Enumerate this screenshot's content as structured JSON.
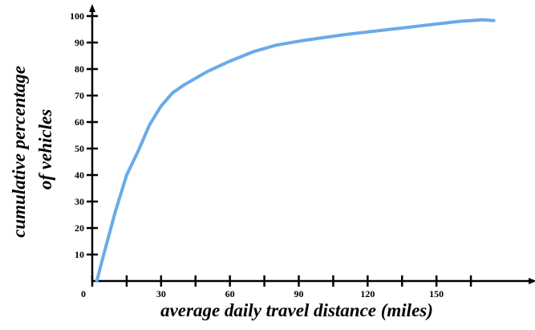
{
  "chart_data": {
    "type": "line",
    "title": "",
    "xlabel": "average daily travel distance (miles)",
    "ylabel_lines": [
      "cumulative percentage",
      "of vehicles"
    ],
    "xlim": [
      0,
      180
    ],
    "ylim": [
      0,
      100
    ],
    "x_ticks": [
      0,
      15,
      30,
      45,
      60,
      75,
      90,
      105,
      120,
      135,
      150,
      165
    ],
    "x_tick_labels": [
      {
        "value": 0,
        "label": "0"
      },
      {
        "value": 30,
        "label": "30"
      },
      {
        "value": 60,
        "label": "60"
      },
      {
        "value": 90,
        "label": "90"
      },
      {
        "value": 120,
        "label": "120"
      },
      {
        "value": 150,
        "label": "150"
      }
    ],
    "y_ticks": [
      10,
      20,
      30,
      40,
      50,
      60,
      70,
      80,
      90,
      100
    ],
    "y_tick_labels": [
      "10",
      "20",
      "30",
      "40",
      "50",
      "60",
      "70",
      "80",
      "90",
      "100"
    ],
    "grid": false,
    "legend": "none",
    "series": [
      {
        "color": "#6aaae8",
        "x": [
          2,
          5,
          10,
          15,
          20,
          25,
          30,
          35,
          40,
          50,
          60,
          70,
          80,
          90,
          100,
          110,
          120,
          130,
          140,
          150,
          160,
          170,
          175
        ],
        "y": [
          0,
          10,
          26,
          40,
          49,
          59,
          66,
          71,
          74,
          79,
          83,
          86.5,
          89,
          90.5,
          91.8,
          93,
          94,
          95,
          96,
          97,
          98,
          98.6,
          98.3
        ]
      }
    ]
  }
}
